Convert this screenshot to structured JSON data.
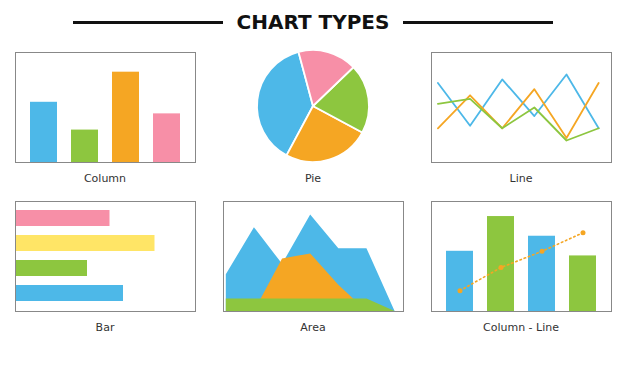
{
  "title": "CHART TYPES",
  "chart_data": [
    {
      "type": "bar",
      "title": "Column",
      "categories": [
        null,
        null,
        null,
        null
      ],
      "values": [
        0.52,
        0.28,
        0.78,
        0.42
      ],
      "colors": [
        "#4db8e8",
        "#8dc63f",
        "#f5a623",
        "#f78fa7"
      ],
      "ylim": [
        0,
        0.95
      ],
      "tick_labels": false
    },
    {
      "type": "pie",
      "title": "Pie",
      "values": [
        38,
        25,
        20,
        17
      ],
      "colors": [
        "#4db8e8",
        "#f5a623",
        "#8dc63f",
        "#f78fa7"
      ]
    },
    {
      "type": "line",
      "title": "Line",
      "x": [
        0,
        1,
        2,
        3,
        4,
        5
      ],
      "series": [
        {
          "color": "#4db8e8",
          "values": [
            0.65,
            0.3,
            0.68,
            0.38,
            0.72,
            0.28
          ]
        },
        {
          "color": "#f5a623",
          "values": [
            0.28,
            0.55,
            0.28,
            0.6,
            0.2,
            0.65
          ]
        },
        {
          "color": "#8dc63f",
          "values": [
            0.48,
            0.52,
            0.28,
            0.45,
            0.18,
            0.28
          ]
        }
      ],
      "xlim": [
        -0.2,
        5.4
      ],
      "ylim": [
        0,
        0.9
      ],
      "tick_labels": false
    },
    {
      "type": "bar",
      "title": "Bar",
      "orientation": "horizontal",
      "categories": [
        null,
        null,
        null,
        null
      ],
      "values": [
        0.42,
        0.62,
        0.32,
        0.48
      ],
      "colors": [
        "#f78fa7",
        "#ffe566",
        "#8dc63f",
        "#4db8e8"
      ],
      "xlim": [
        0,
        0.8
      ],
      "tick_labels": false
    },
    {
      "type": "area",
      "title": "Area",
      "x": [
        0,
        1,
        2,
        3,
        4,
        5,
        6
      ],
      "stacked": false,
      "series": [
        {
          "color": "#4db8e8",
          "values": [
            0.35,
            0.8,
            0.45,
            0.92,
            0.6,
            0.6,
            0.0
          ]
        },
        {
          "color": "#f5a623",
          "values": [
            0.0,
            0.0,
            0.5,
            0.55,
            0.25,
            0.0,
            0.0
          ]
        },
        {
          "color": "#8dc63f",
          "values": [
            0.12,
            0.12,
            0.12,
            0.12,
            0.12,
            0.12,
            0.0
          ]
        }
      ],
      "xlim": [
        -0.1,
        6.3
      ],
      "ylim": [
        0,
        1.05
      ],
      "tick_labels": false
    },
    {
      "type": "bar",
      "title": "Column - Line",
      "categories": [
        null,
        null,
        null,
        null
      ],
      "values": [
        0.52,
        0.82,
        0.65,
        0.48
      ],
      "colors": [
        "#4db8e8",
        "#8dc63f",
        "#4db8e8",
        "#8dc63f"
      ],
      "series": [
        {
          "type": "line",
          "color": "#f5a623",
          "line_style": "dotted",
          "marker": "circle",
          "values": [
            0.18,
            0.38,
            0.52,
            0.68
          ]
        }
      ],
      "ylim": [
        0,
        0.95
      ],
      "tick_labels": false
    }
  ]
}
